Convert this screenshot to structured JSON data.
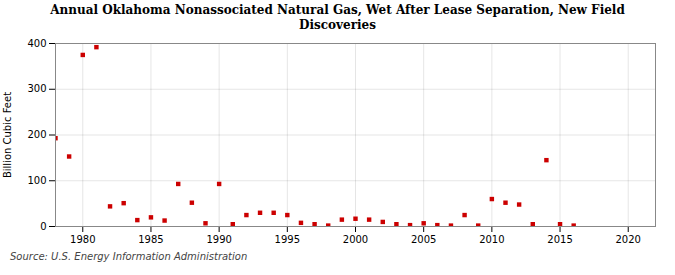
{
  "chart_data": {
    "type": "scatter",
    "title": "Annual Oklahoma Nonassociated Natural Gas, Wet After Lease Separation, New Field\nDiscoveries",
    "ylabel": "Billion Cubic Feet",
    "caption": "Source: U.S. Energy Information Administration",
    "x": [
      1978,
      1979,
      1980,
      1981,
      1982,
      1983,
      1984,
      1985,
      1986,
      1987,
      1988,
      1989,
      1990,
      1991,
      1992,
      1993,
      1994,
      1995,
      1996,
      1997,
      1998,
      1999,
      2000,
      2001,
      2002,
      2003,
      2004,
      2005,
      2006,
      2007,
      2008,
      2009,
      2010,
      2011,
      2012,
      2013,
      2014,
      2015,
      2016
    ],
    "values": [
      193,
      153,
      375,
      392,
      44,
      51,
      14,
      20,
      13,
      93,
      52,
      7,
      93,
      5,
      25,
      30,
      30,
      25,
      8,
      5,
      2,
      15,
      17,
      15,
      10,
      5,
      3,
      7,
      3,
      2,
      25,
      2,
      60,
      52,
      48,
      5,
      145,
      5,
      2
    ],
    "color": "#cc0000",
    "marker": "square",
    "xlim": [
      1978,
      2022
    ],
    "ylim": [
      0,
      400
    ],
    "xticks": [
      1980,
      1985,
      1990,
      1995,
      2000,
      2005,
      2010,
      2015,
      2020
    ],
    "yticks": [
      0,
      100,
      200,
      300,
      400
    ],
    "grid": true
  }
}
